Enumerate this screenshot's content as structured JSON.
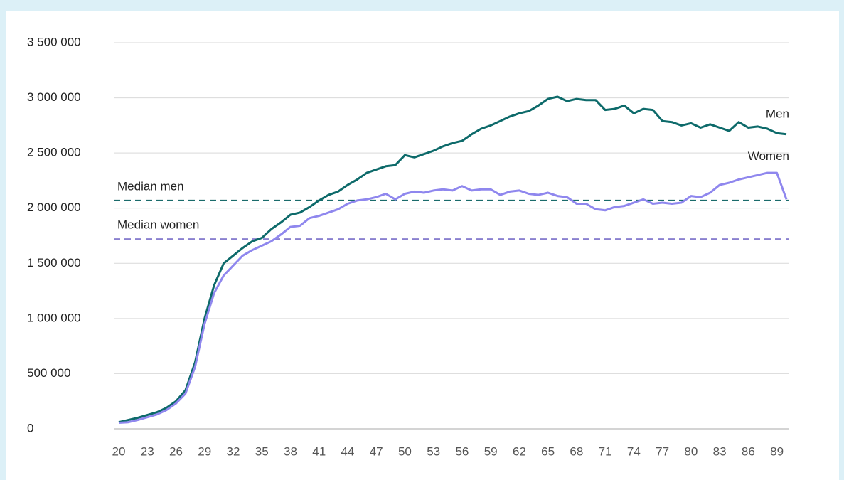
{
  "chart_data": {
    "type": "line",
    "x": [
      20,
      21,
      22,
      23,
      24,
      25,
      26,
      27,
      28,
      29,
      30,
      31,
      32,
      33,
      34,
      35,
      36,
      37,
      38,
      39,
      40,
      41,
      42,
      43,
      44,
      45,
      46,
      47,
      48,
      49,
      50,
      51,
      52,
      53,
      54,
      55,
      56,
      57,
      58,
      59,
      60,
      61,
      62,
      63,
      64,
      65,
      66,
      67,
      68,
      69,
      70,
      71,
      72,
      73,
      74,
      75,
      76,
      77,
      78,
      79,
      80,
      81,
      82,
      83,
      84,
      85,
      86,
      87,
      88,
      89,
      90
    ],
    "xlim": [
      20,
      90
    ],
    "xticks": [
      20,
      23,
      26,
      29,
      32,
      35,
      38,
      41,
      44,
      47,
      50,
      53,
      56,
      59,
      62,
      65,
      68,
      71,
      74,
      77,
      80,
      83,
      86,
      89
    ],
    "ylim": [
      0,
      3500000
    ],
    "yticks": [
      0,
      {
        "value": 500000,
        "label": "500 000"
      },
      {
        "value": 1000000,
        "label": "1 000 000"
      },
      {
        "value": 1500000,
        "label": "1 500 000"
      },
      {
        "value": 2000000,
        "label": "2 000 000"
      },
      {
        "value": 2500000,
        "label": "2 500 000"
      },
      {
        "value": 3000000,
        "label": "3 000 000"
      },
      {
        "value": 3500000,
        "label": "3 500 000"
      }
    ],
    "grid": true,
    "series": [
      {
        "name": "Men",
        "color": "#0d6a6a",
        "values": [
          60000,
          80000,
          100000,
          125000,
          150000,
          190000,
          250000,
          350000,
          600000,
          1000000,
          1300000,
          1500000,
          1570000,
          1640000,
          1700000,
          1730000,
          1810000,
          1870000,
          1940000,
          1960000,
          2010000,
          2070000,
          2120000,
          2150000,
          2210000,
          2260000,
          2320000,
          2350000,
          2380000,
          2390000,
          2480000,
          2460000,
          2490000,
          2520000,
          2560000,
          2590000,
          2610000,
          2670000,
          2720000,
          2750000,
          2790000,
          2830000,
          2860000,
          2880000,
          2930000,
          2990000,
          3010000,
          2970000,
          2990000,
          2980000,
          2980000,
          2890000,
          2900000,
          2930000,
          2860000,
          2900000,
          2890000,
          2790000,
          2780000,
          2750000,
          2770000,
          2730000,
          2760000,
          2730000,
          2700000,
          2780000,
          2730000,
          2740000,
          2720000,
          2680000,
          2670000
        ]
      },
      {
        "name": "Women",
        "color": "#8f87ee",
        "values": [
          55000,
          60000,
          80000,
          105000,
          130000,
          170000,
          230000,
          320000,
          560000,
          950000,
          1230000,
          1390000,
          1480000,
          1570000,
          1620000,
          1660000,
          1700000,
          1760000,
          1830000,
          1840000,
          1910000,
          1930000,
          1960000,
          1990000,
          2040000,
          2070000,
          2080000,
          2100000,
          2130000,
          2080000,
          2130000,
          2150000,
          2140000,
          2160000,
          2170000,
          2160000,
          2200000,
          2160000,
          2170000,
          2170000,
          2120000,
          2150000,
          2160000,
          2130000,
          2120000,
          2140000,
          2110000,
          2100000,
          2040000,
          2040000,
          1990000,
          1980000,
          2010000,
          2020000,
          2050000,
          2080000,
          2040000,
          2050000,
          2040000,
          2050000,
          2110000,
          2100000,
          2140000,
          2210000,
          2230000,
          2260000,
          2280000,
          2300000,
          2320000,
          2320000,
          2080000
        ]
      }
    ],
    "reference_lines": [
      {
        "label": "Median men",
        "value": 2070000,
        "color": "#1a6b6b"
      },
      {
        "label": "Median women",
        "value": 1720000,
        "color": "#8a80cf"
      }
    ]
  }
}
